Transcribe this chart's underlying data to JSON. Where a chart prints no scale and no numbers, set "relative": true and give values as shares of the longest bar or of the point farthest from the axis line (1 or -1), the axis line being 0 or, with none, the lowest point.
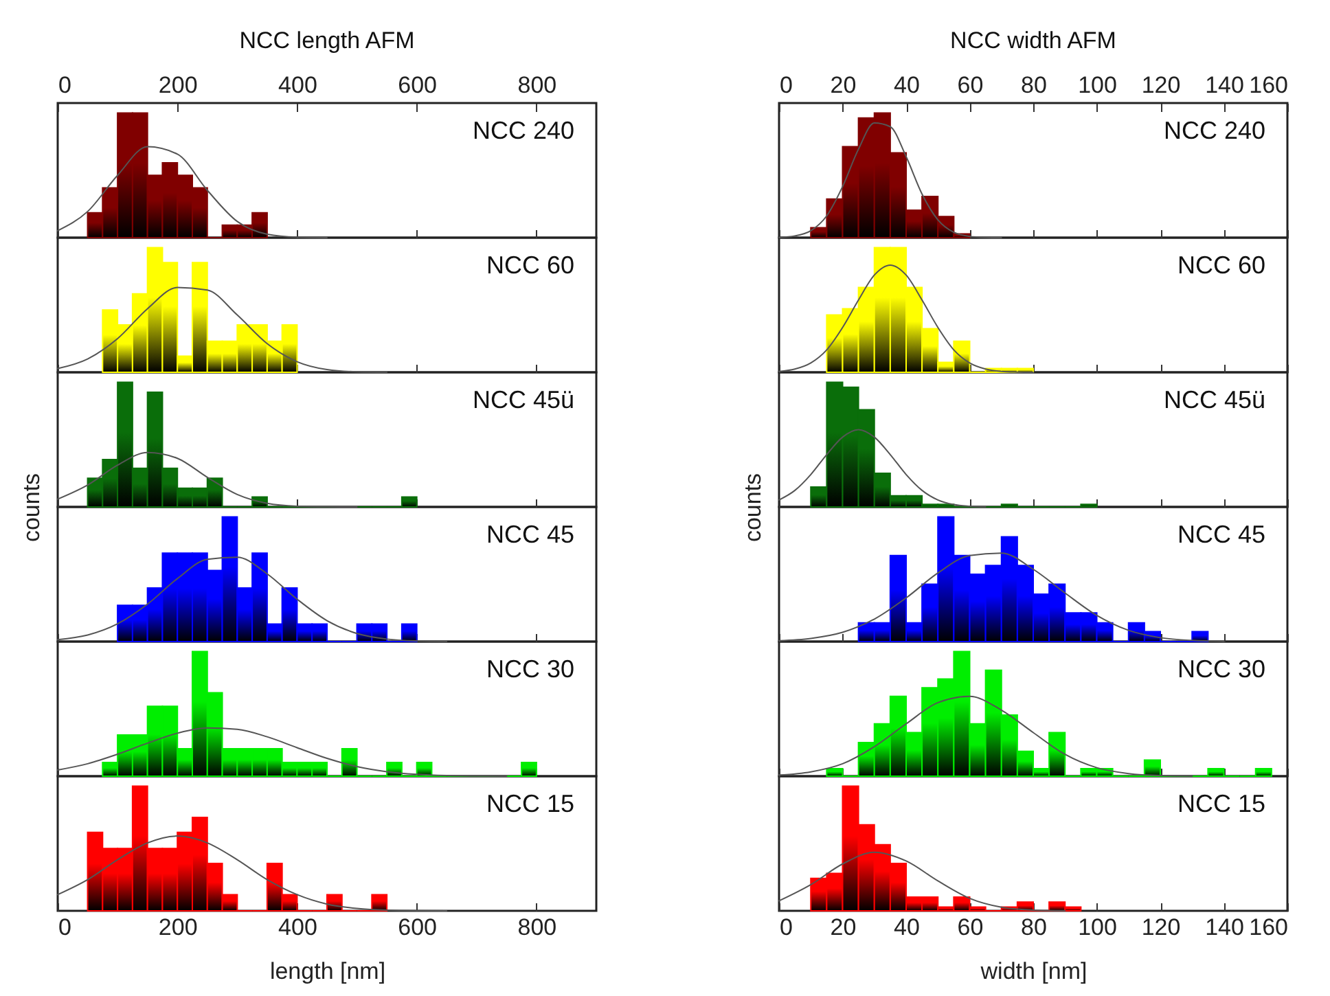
{
  "chart_data": [
    {
      "type": "histogram",
      "title": "NCC length AFM",
      "annotations": [
        "NCC 240"
      ],
      "relative": true,
      "xlim": [
        0,
        900
      ],
      "xticks": [
        0,
        200,
        400,
        600,
        800
      ],
      "x2lim": [
        0,
        900
      ],
      "x2ticks": [
        0,
        200,
        400,
        600,
        800
      ],
      "tick_labels": false,
      "bins": [
        50,
        75,
        100,
        125,
        150,
        175,
        200,
        225,
        250,
        275,
        300,
        325,
        350
      ],
      "series": [
        {
          "type": "histogram",
          "color": "#800000",
          "values": [
            0.2,
            0.4,
            1,
            1,
            0.5,
            0.6,
            0.5,
            0.4,
            0,
            0.1,
            0.1,
            0.2
          ]
        },
        {
          "type": "line",
          "color": "#555555",
          "x": [
            0,
            50,
            100,
            150,
            200,
            250,
            300,
            350,
            400,
            450
          ],
          "values": [
            0.056,
            0.21,
            0.5,
            0.73,
            0.67,
            0.38,
            0.13,
            0.028,
            0.004,
            0
          ]
        }
      ]
    },
    {
      "type": "histogram",
      "annotations": [
        "NCC 60"
      ],
      "relative": true,
      "xlim": [
        0,
        900
      ],
      "xticks": [
        0,
        200,
        400,
        600,
        800
      ],
      "tick_labels": false,
      "bins": [
        75,
        100,
        125,
        150,
        175,
        200,
        225,
        250,
        275,
        300,
        325,
        350,
        375,
        400
      ],
      "series": [
        {
          "type": "histogram",
          "color": "#ffff00",
          "values": [
            0.5,
            0.38,
            0.63,
            1,
            0.88,
            0.13,
            0.88,
            0.25,
            0.25,
            0.38,
            0.38,
            0.25,
            0.38
          ]
        },
        {
          "type": "line",
          "color": "#555555",
          "x": [
            0,
            50,
            100,
            150,
            200,
            250,
            300,
            350,
            400,
            450,
            500,
            550
          ],
          "values": [
            0.03,
            0.107,
            0.27,
            0.51,
            0.68,
            0.66,
            0.46,
            0.23,
            0.085,
            0.022,
            0.004,
            0.001
          ]
        }
      ]
    },
    {
      "type": "histogram",
      "annotations": [
        "NCC 45ü"
      ],
      "ylabel": "counts",
      "relative": true,
      "xlim": [
        0,
        900
      ],
      "xticks": [
        0,
        200,
        400,
        600,
        800
      ],
      "tick_labels": false,
      "bins": [
        50,
        75,
        100,
        125,
        150,
        175,
        200,
        225,
        250,
        275,
        300,
        325,
        350,
        375,
        400,
        425,
        450,
        475,
        500,
        525,
        550,
        575,
        600
      ],
      "series": [
        {
          "type": "histogram",
          "color": "#0a6e0a",
          "values": [
            0.23,
            0.38,
            1,
            0.31,
            0.92,
            0.31,
            0.15,
            0.15,
            0.23,
            0,
            0,
            0.08,
            0,
            0,
            0,
            0,
            0,
            0,
            0,
            0,
            0,
            0.08
          ]
        },
        {
          "type": "line",
          "color": "#555555",
          "x": [
            0,
            50,
            100,
            150,
            200,
            250,
            300,
            350,
            400,
            450,
            500
          ],
          "values": [
            0.063,
            0.176,
            0.335,
            0.437,
            0.39,
            0.238,
            0.1,
            0.029,
            0.006,
            0.001,
            0
          ]
        }
      ]
    },
    {
      "type": "histogram",
      "annotations": [
        "NCC 45"
      ],
      "relative": true,
      "xlim": [
        0,
        900
      ],
      "xticks": [
        0,
        200,
        400,
        600,
        800
      ],
      "tick_labels": false,
      "bins": [
        100,
        125,
        150,
        175,
        200,
        225,
        250,
        275,
        300,
        325,
        350,
        375,
        400,
        425,
        450,
        475,
        500,
        525,
        550,
        575,
        600
      ],
      "series": [
        {
          "type": "histogram",
          "color": "#0000ff",
          "values": [
            0.29,
            0.29,
            0.43,
            0.71,
            0.71,
            0.71,
            0.57,
            1,
            0.43,
            0.71,
            0.14,
            0.43,
            0.14,
            0.14,
            0,
            0,
            0.14,
            0.14,
            0,
            0.14
          ]
        },
        {
          "type": "line",
          "color": "#555555",
          "x": [
            0,
            50,
            100,
            150,
            200,
            250,
            300,
            350,
            400,
            450,
            500,
            550,
            600,
            650
          ],
          "values": [
            0.015,
            0.052,
            0.142,
            0.3,
            0.505,
            0.66,
            0.676,
            0.543,
            0.34,
            0.168,
            0.065,
            0.02,
            0.005,
            0.001
          ]
        }
      ]
    },
    {
      "type": "histogram",
      "annotations": [
        "NCC 30"
      ],
      "relative": true,
      "xlim": [
        0,
        900
      ],
      "xticks": [
        0,
        200,
        400,
        600,
        800
      ],
      "tick_labels": false,
      "bins": [
        75,
        100,
        125,
        150,
        175,
        200,
        225,
        250,
        275,
        300,
        325,
        350,
        375,
        400,
        425,
        450,
        475,
        500,
        525,
        550,
        575,
        600,
        625,
        650,
        675,
        700,
        725,
        750,
        775,
        800
      ],
      "series": [
        {
          "type": "histogram",
          "color": "#00ee00",
          "values": [
            0.11,
            0.33,
            0.33,
            0.56,
            0.56,
            0.22,
            1,
            0.67,
            0.22,
            0.22,
            0.22,
            0.22,
            0.11,
            0.11,
            0.11,
            0,
            0.22,
            0,
            0,
            0.11,
            0,
            0.11,
            0,
            0,
            0,
            0,
            0,
            0,
            0.11
          ]
        },
        {
          "type": "line",
          "color": "#555555",
          "x": [
            0,
            50,
            100,
            150,
            200,
            250,
            300,
            350,
            400,
            450,
            500,
            550,
            600,
            650,
            700,
            750
          ],
          "values": [
            0.05,
            0.1,
            0.176,
            0.265,
            0.345,
            0.387,
            0.376,
            0.316,
            0.229,
            0.143,
            0.077,
            0.036,
            0.015,
            0.005,
            0.0015,
            0
          ]
        }
      ]
    },
    {
      "type": "histogram",
      "annotations": [
        "NCC 15"
      ],
      "xlabel": "length [nm]",
      "relative": true,
      "xlim": [
        0,
        900
      ],
      "xticks": [
        0,
        200,
        400,
        600,
        800
      ],
      "tick_labels": "x",
      "bins": [
        50,
        75,
        100,
        125,
        150,
        175,
        200,
        225,
        250,
        275,
        300,
        325,
        350,
        375,
        400,
        425,
        450,
        475,
        500,
        525,
        550
      ],
      "series": [
        {
          "type": "histogram",
          "color": "#ff0000",
          "values": [
            0.63,
            0.5,
            0.5,
            1,
            0.5,
            0.5,
            0.63,
            0.75,
            0.38,
            0.13,
            0,
            0,
            0.38,
            0.13,
            0,
            0,
            0.13,
            0,
            0,
            0.13
          ]
        },
        {
          "type": "line",
          "color": "#555555",
          "x": [
            0,
            50,
            100,
            150,
            200,
            250,
            300,
            350,
            400,
            450,
            500,
            550,
            600,
            650
          ],
          "values": [
            0.13,
            0.25,
            0.41,
            0.545,
            0.6,
            0.545,
            0.41,
            0.25,
            0.13,
            0.054,
            0.019,
            0.005,
            0.001,
            0
          ]
        }
      ]
    },
    {
      "type": "histogram",
      "title": "NCC width AFM",
      "annotations": [
        "NCC 240"
      ],
      "relative": true,
      "xlim": [
        0,
        160
      ],
      "xticks": [
        0,
        20,
        40,
        60,
        80,
        100,
        120,
        140,
        160
      ],
      "x2lim": [
        0,
        160
      ],
      "x2ticks": [
        0,
        20,
        40,
        60,
        80,
        100,
        120,
        140,
        160
      ],
      "tick_labels": false,
      "bins": [
        10,
        15,
        20,
        25,
        30,
        35,
        40,
        45,
        50,
        55,
        60
      ],
      "series": [
        {
          "type": "histogram",
          "color": "#800000",
          "values": [
            0.08,
            0.31,
            0.73,
            0.96,
            1,
            0.68,
            0.22,
            0.33,
            0.17,
            0.03
          ]
        },
        {
          "type": "line",
          "color": "#555555",
          "x": [
            0,
            5,
            10,
            15,
            20,
            25,
            30,
            35,
            40,
            45,
            50,
            55,
            60,
            65,
            70
          ],
          "values": [
            0.002,
            0.014,
            0.056,
            0.175,
            0.41,
            0.71,
            0.92,
            0.89,
            0.65,
            0.35,
            0.143,
            0.043,
            0.01,
            0.002,
            0
          ]
        }
      ]
    },
    {
      "type": "histogram",
      "annotations": [
        "NCC 60"
      ],
      "relative": true,
      "xlim": [
        0,
        160
      ],
      "xticks": [
        0,
        20,
        40,
        60,
        80,
        100,
        120,
        140,
        160
      ],
      "tick_labels": false,
      "bins": [
        15,
        20,
        25,
        30,
        35,
        40,
        45,
        50,
        55,
        60,
        65,
        70,
        75,
        80
      ],
      "series": [
        {
          "type": "histogram",
          "color": "#ffff00",
          "values": [
            0.46,
            0.51,
            0.68,
            1,
            1,
            0.68,
            0.35,
            0.08,
            0.25,
            0,
            0.03,
            0.03,
            0.03
          ]
        },
        {
          "type": "line",
          "color": "#555555",
          "x": [
            0,
            5,
            10,
            15,
            20,
            25,
            30,
            35,
            40,
            45,
            50,
            55,
            60,
            65,
            70,
            75,
            80
          ],
          "values": [
            0.007,
            0.026,
            0.075,
            0.18,
            0.36,
            0.58,
            0.78,
            0.86,
            0.78,
            0.58,
            0.36,
            0.18,
            0.075,
            0.026,
            0.007,
            0.002,
            0
          ]
        }
      ]
    },
    {
      "type": "histogram",
      "annotations": [
        "NCC 45ü"
      ],
      "ylabel": "counts",
      "relative": true,
      "xlim": [
        0,
        160
      ],
      "xticks": [
        0,
        20,
        40,
        60,
        80,
        100,
        120,
        140,
        160
      ],
      "tick_labels": false,
      "bins": [
        10,
        15,
        20,
        25,
        30,
        35,
        40,
        45,
        50,
        55,
        60,
        65,
        70,
        75,
        80,
        85,
        90,
        95,
        100
      ],
      "series": [
        {
          "type": "histogram",
          "color": "#0a6e0a",
          "values": [
            0.16,
            1,
            0.96,
            0.78,
            0.27,
            0.09,
            0.09,
            0.02,
            0.02,
            0,
            0,
            0,
            0.02,
            0,
            0,
            0,
            0,
            0.02
          ]
        },
        {
          "type": "line",
          "color": "#555555",
          "x": [
            0,
            5,
            10,
            15,
            20,
            25,
            30,
            35,
            40,
            45,
            50,
            55,
            60,
            65
          ],
          "values": [
            0.056,
            0.133,
            0.26,
            0.42,
            0.56,
            0.62,
            0.56,
            0.42,
            0.26,
            0.133,
            0.056,
            0.019,
            0.006,
            0.001
          ]
        }
      ]
    },
    {
      "type": "histogram",
      "annotations": [
        "NCC 45"
      ],
      "relative": true,
      "xlim": [
        0,
        160
      ],
      "xticks": [
        0,
        20,
        40,
        60,
        80,
        100,
        120,
        140,
        160
      ],
      "tick_labels": false,
      "bins": [
        25,
        30,
        35,
        40,
        45,
        50,
        55,
        60,
        65,
        70,
        75,
        80,
        85,
        90,
        95,
        100,
        105,
        110,
        115,
        120,
        125,
        130,
        135
      ],
      "series": [
        {
          "type": "histogram",
          "color": "#0000ff",
          "values": [
            0.15,
            0.15,
            0.69,
            0.15,
            0.46,
            1,
            0.69,
            0.54,
            0.61,
            0.84,
            0.61,
            0.38,
            0.46,
            0.23,
            0.23,
            0.15,
            0,
            0.15,
            0.08,
            0,
            0,
            0.08
          ]
        },
        {
          "type": "line",
          "color": "#555555",
          "x": [
            0,
            10,
            20,
            30,
            40,
            50,
            60,
            70,
            80,
            90,
            100,
            110,
            120,
            130,
            140
          ],
          "values": [
            0.007,
            0.025,
            0.074,
            0.18,
            0.35,
            0.55,
            0.69,
            0.71,
            0.58,
            0.39,
            0.21,
            0.09,
            0.031,
            0.009,
            0.002
          ]
        }
      ]
    },
    {
      "type": "histogram",
      "annotations": [
        "NCC 30"
      ],
      "relative": true,
      "xlim": [
        0,
        160
      ],
      "xticks": [
        0,
        20,
        40,
        60,
        80,
        100,
        120,
        140,
        160
      ],
      "tick_labels": false,
      "bins": [
        15,
        20,
        25,
        30,
        35,
        40,
        45,
        50,
        55,
        60,
        65,
        70,
        75,
        80,
        85,
        90,
        95,
        100,
        105,
        110,
        115,
        120,
        125,
        130,
        135,
        140,
        145,
        150,
        155
      ],
      "series": [
        {
          "type": "histogram",
          "color": "#00ee00",
          "values": [
            0.06,
            0,
            0.27,
            0.42,
            0.64,
            0.35,
            0.71,
            0.78,
            1,
            0.42,
            0.85,
            0.49,
            0.2,
            0.06,
            0.35,
            0,
            0.06,
            0.06,
            0,
            0,
            0.13,
            0,
            0,
            0,
            0.06,
            0,
            0,
            0.06
          ]
        },
        {
          "type": "line",
          "color": "#555555",
          "x": [
            0,
            10,
            20,
            30,
            40,
            50,
            60,
            70,
            80,
            90,
            100,
            110,
            120,
            130
          ],
          "values": [
            0.009,
            0.035,
            0.1,
            0.237,
            0.42,
            0.59,
            0.64,
            0.53,
            0.35,
            0.175,
            0.068,
            0.021,
            0.005,
            0.001
          ]
        }
      ]
    },
    {
      "type": "histogram",
      "annotations": [
        "NCC 15"
      ],
      "xlabel": "width [nm]",
      "relative": true,
      "xlim": [
        0,
        160
      ],
      "xticks": [
        0,
        20,
        40,
        60,
        80,
        100,
        120,
        140,
        160
      ],
      "tick_labels": "x",
      "bins": [
        10,
        15,
        20,
        25,
        30,
        35,
        40,
        45,
        50,
        55,
        60,
        65,
        70,
        75,
        80,
        85,
        90,
        95
      ],
      "series": [
        {
          "type": "histogram",
          "color": "#ff0000",
          "values": [
            0.26,
            0.3,
            1,
            0.69,
            0.53,
            0.38,
            0.11,
            0.11,
            0.03,
            0.11,
            0.03,
            0,
            0.03,
            0.07,
            0,
            0.07,
            0.03
          ]
        },
        {
          "type": "line",
          "color": "#555555",
          "x": [
            0,
            10,
            20,
            30,
            40,
            50,
            60,
            70,
            80,
            90
          ],
          "values": [
            0.08,
            0.21,
            0.376,
            0.47,
            0.4,
            0.24,
            0.1,
            0.029,
            0.006,
            0.001
          ]
        }
      ]
    }
  ]
}
